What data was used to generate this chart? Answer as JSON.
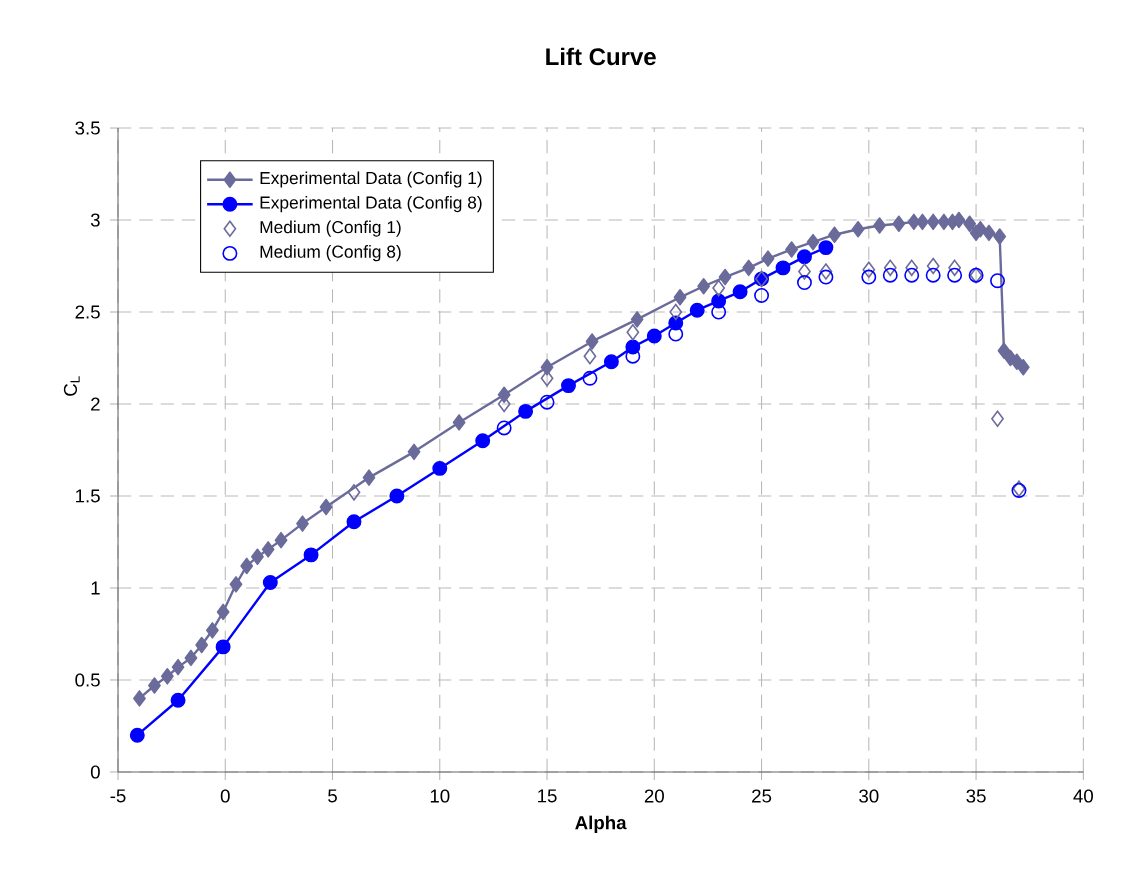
{
  "chart_data": {
    "type": "line",
    "title": "**Lift Curve**",
    "xlabel": "**Alpha**",
    "ylabel": "C$_{L}$",
    "xlim": [
      -5,
      40
    ],
    "ylim": [
      0,
      3.5
    ],
    "xticks": [
      -5,
      0,
      5,
      10,
      15,
      20,
      25,
      30,
      35,
      40
    ],
    "yticks": [
      0,
      0.5,
      1,
      1.5,
      2,
      2.5,
      3,
      3.5
    ],
    "grid": true,
    "legend": "top left",
    "series": [
      {
        "name": "Experimental Data (Config 1)",
        "marker": "diamond",
        "color": "#6b6b9b",
        "x": [
          -4,
          -3.3,
          -2.7,
          -2.2,
          -1.6,
          -1.1,
          -0.6,
          -0.1,
          0.5,
          1,
          1.5,
          2,
          2.6,
          3.6,
          4.7,
          6.7,
          8.8,
          10.9,
          13,
          15,
          17.1,
          19.2,
          21.2,
          22.3,
          23.3,
          24.4,
          25.3,
          26.4,
          27.4,
          28.4,
          29.5,
          30.5,
          31.4,
          32.1,
          32.5,
          33,
          33.5,
          33.9,
          34.2,
          34.7,
          35,
          35.2,
          35.6,
          36.1,
          36.3,
          36.6,
          36.9,
          37.2
        ],
        "values": [
          0.4,
          0.47,
          0.52,
          0.57,
          0.62,
          0.69,
          0.77,
          0.87,
          1.02,
          1.12,
          1.17,
          1.21,
          1.26,
          1.35,
          1.44,
          1.6,
          1.74,
          1.9,
          2.05,
          2.2,
          2.34,
          2.46,
          2.58,
          2.64,
          2.69,
          2.74,
          2.79,
          2.84,
          2.88,
          2.92,
          2.95,
          2.97,
          2.98,
          2.99,
          2.99,
          2.99,
          2.99,
          2.99,
          3,
          2.98,
          2.93,
          2.95,
          2.93,
          2.91,
          2.29,
          2.25,
          2.23,
          2.2
        ]
      },
      {
        "name": "Experimental Data (Config 8)",
        "marker": "circle",
        "color": "#0000ff",
        "x": [
          -4.1,
          -2.2,
          -0.1,
          2.1,
          4,
          6,
          8,
          10,
          12,
          14,
          16,
          18,
          19,
          20,
          21,
          22,
          23,
          24,
          25,
          26,
          27,
          28
        ],
        "values": [
          0.2,
          0.39,
          0.68,
          1.03,
          1.18,
          1.36,
          1.5,
          1.65,
          1.8,
          1.96,
          2.1,
          2.23,
          2.31,
          2.37,
          2.44,
          2.51,
          2.56,
          2.61,
          2.68,
          2.74,
          2.8,
          2.85
        ]
      },
      {
        "name": "Medium (Config 1)",
        "type": "scatter",
        "marker": "diamond",
        "color": "#6b6b9b",
        "x": [
          6,
          13,
          15,
          17,
          19,
          21,
          23,
          25,
          27,
          28,
          30,
          31,
          32,
          33,
          34,
          35,
          36,
          37
        ],
        "values": [
          1.52,
          2.0,
          2.14,
          2.26,
          2.39,
          2.5,
          2.63,
          2.68,
          2.72,
          2.72,
          2.73,
          2.74,
          2.74,
          2.75,
          2.74,
          2.7,
          1.92,
          1.54
        ]
      },
      {
        "name": "Medium (Config 8)",
        "type": "scatter",
        "marker": "circle",
        "color": "#0000ff",
        "x": [
          13,
          15,
          17,
          19,
          21,
          23,
          25,
          27,
          28,
          30,
          31,
          32,
          33,
          34,
          35,
          36,
          37
        ],
        "values": [
          1.87,
          2.01,
          2.14,
          2.26,
          2.38,
          2.5,
          2.59,
          2.66,
          2.69,
          2.69,
          2.7,
          2.7,
          2.7,
          2.7,
          2.7,
          2.67,
          1.53
        ]
      }
    ]
  }
}
